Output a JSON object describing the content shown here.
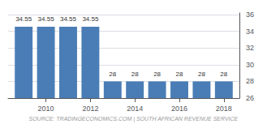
{
  "chart_data": {
    "type": "bar",
    "x": [
      2009,
      2010,
      2011,
      2012,
      2013,
      2014,
      2015,
      2016,
      2017,
      2018
    ],
    "values": [
      34.55,
      34.55,
      34.55,
      34.55,
      28,
      28,
      28,
      28,
      28,
      28
    ],
    "color": "#4a7db5",
    "xlim": [
      2008.3,
      2018.7
    ],
    "xticks": [
      2010,
      2012,
      2014,
      2016,
      2018
    ],
    "ylim": [
      26,
      36.2
    ],
    "yticks": [
      26,
      28,
      30,
      32,
      34,
      36
    ],
    "grid": true,
    "data_labels": true,
    "annotation": "SOURCE: TRADINGECONOMICS.COM | SOUTH AFRICAN REVENUE SERVICE"
  }
}
